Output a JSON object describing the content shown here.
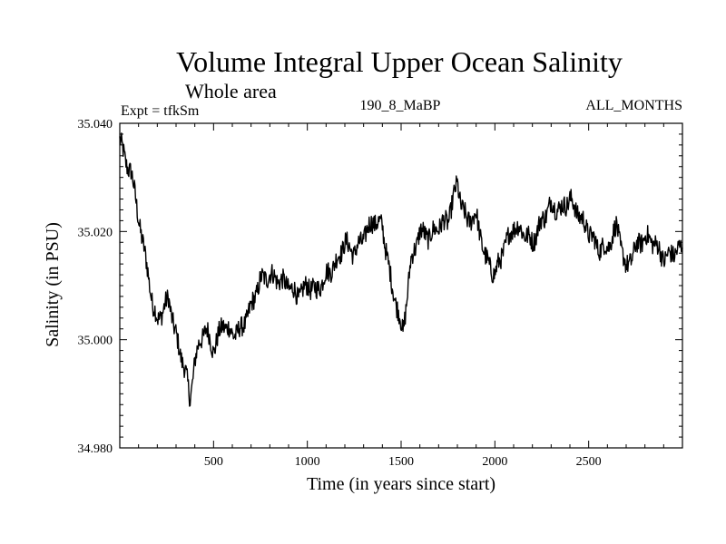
{
  "chart_data": {
    "type": "line",
    "title": "Volume Integral Upper Ocean Salinity",
    "subtitle": "Whole area",
    "experiment_label": "Expt = tfkSm",
    "run_label": "190_8_MaBP",
    "months_label": "ALL_MONTHS",
    "xlabel": "Time (in years since start)",
    "ylabel": "Salinity (in PSU)",
    "xlim": [
      0,
      3000
    ],
    "ylim": [
      34.98,
      35.04
    ],
    "x_ticks": [
      500,
      1000,
      1500,
      2000,
      2500
    ],
    "x_tick_labels": [
      "500",
      "1000",
      "1500",
      "2000",
      "2500"
    ],
    "y_ticks": [
      34.98,
      35.0,
      35.02,
      35.04
    ],
    "y_tick_labels": [
      "34.980",
      "35.000",
      "35.020",
      "35.040"
    ],
    "grid": false,
    "line_color": "#000000",
    "series": [
      {
        "name": "Salinity",
        "x": [
          0,
          30,
          60,
          90,
          120,
          150,
          175,
          200,
          230,
          260,
          290,
          320,
          350,
          375,
          400,
          430,
          460,
          500,
          550,
          600,
          650,
          700,
          750,
          800,
          850,
          900,
          950,
          1000,
          1050,
          1100,
          1150,
          1200,
          1250,
          1300,
          1350,
          1400,
          1450,
          1480,
          1510,
          1550,
          1600,
          1650,
          1700,
          1750,
          1800,
          1820,
          1850,
          1900,
          1950,
          2000,
          2050,
          2100,
          2150,
          2200,
          2250,
          2300,
          2350,
          2400,
          2450,
          2500,
          2550,
          2600,
          2650,
          2700,
          2750,
          2800,
          2850,
          2900,
          2950,
          3000
        ],
        "y": [
          35.037,
          35.033,
          35.031,
          35.025,
          35.018,
          35.013,
          35.006,
          35.004,
          35.005,
          35.008,
          35.002,
          34.998,
          34.994,
          34.989,
          34.996,
          35.0,
          35.002,
          34.998,
          35.003,
          35.001,
          35.002,
          35.006,
          35.011,
          35.012,
          35.011,
          35.01,
          35.008,
          35.01,
          35.009,
          35.012,
          35.014,
          35.018,
          35.016,
          35.019,
          35.022,
          35.021,
          35.01,
          35.006,
          35.001,
          35.014,
          35.02,
          35.019,
          35.021,
          35.022,
          35.029,
          35.025,
          35.022,
          35.023,
          35.015,
          35.012,
          35.017,
          35.021,
          35.02,
          35.018,
          35.022,
          35.025,
          35.024,
          35.026,
          35.023,
          35.02,
          35.017,
          35.017,
          35.021,
          35.013,
          35.017,
          35.019,
          35.018,
          35.015,
          35.016,
          35.017
        ]
      }
    ]
  }
}
